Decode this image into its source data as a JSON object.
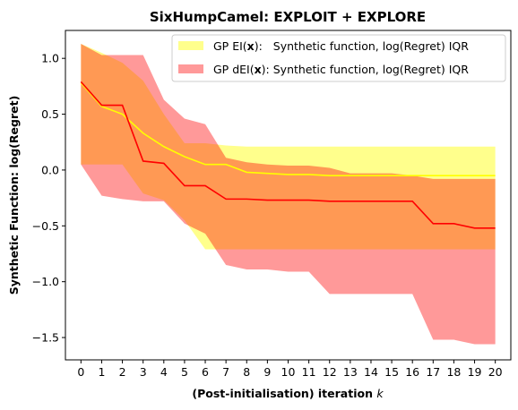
{
  "chart_data": {
    "type": "line",
    "title": "SixHumpCamel: EXPLOIT + EXPLORE",
    "xlabel_prefix": "(Post-initialisation) iteration ",
    "xlabel_var": "k",
    "ylabel": "Synthetic Function: log(Regret)",
    "xlim": [
      -0.75,
      20.75
    ],
    "ylim": [
      -1.7,
      1.25
    ],
    "x_ticks": [
      0,
      1,
      2,
      3,
      4,
      5,
      6,
      7,
      8,
      9,
      10,
      11,
      12,
      13,
      14,
      15,
      16,
      17,
      18,
      19,
      20
    ],
    "y_ticks": [
      1.0,
      0.5,
      0.0,
      -0.5,
      -1.0,
      -1.5
    ],
    "y_tick_labels": [
      "1.0",
      "0.5",
      "0.0",
      "−0.5",
      "−1.0",
      "−1.5"
    ],
    "x": [
      0,
      1,
      2,
      3,
      4,
      5,
      6,
      7,
      8,
      9,
      10,
      11,
      12,
      13,
      14,
      15,
      16,
      17,
      18,
      19,
      20
    ],
    "series": [
      {
        "name": "GP EI(x):   Synthetic function, log(Regret) IQR",
        "legend_parts": [
          "GP EI(",
          "x",
          "):   Synthetic function, log(Regret) IQR"
        ],
        "line_color": "#ffff00",
        "fill_color": "#ffff00",
        "fill_alpha": 0.45,
        "median": [
          0.78,
          0.57,
          0.5,
          0.33,
          0.21,
          0.12,
          0.05,
          0.05,
          -0.02,
          -0.03,
          -0.04,
          -0.04,
          -0.05,
          -0.05,
          -0.05,
          -0.05,
          -0.05,
          -0.05,
          -0.05,
          -0.05,
          -0.05
        ],
        "upper": [
          1.13,
          1.05,
          0.96,
          0.8,
          0.5,
          0.24,
          0.24,
          0.22,
          0.21,
          0.21,
          0.21,
          0.21,
          0.21,
          0.21,
          0.21,
          0.21,
          0.21,
          0.21,
          0.21,
          0.21,
          0.21
        ],
        "lower": [
          0.05,
          0.05,
          0.05,
          -0.21,
          -0.27,
          -0.45,
          -0.71,
          -0.71,
          -0.71,
          -0.71,
          -0.71,
          -0.71,
          -0.71,
          -0.71,
          -0.71,
          -0.71,
          -0.71,
          -0.71,
          -0.71,
          -0.71,
          -0.71
        ]
      },
      {
        "name": "GP dEI(x): Synthetic function, log(Regret) IQR",
        "legend_parts": [
          "GP dEI(",
          "x",
          "): Synthetic function, log(Regret) IQR"
        ],
        "line_color": "#ff0000",
        "fill_color": "#ff0000",
        "fill_alpha": 0.4,
        "median": [
          0.79,
          0.58,
          0.58,
          0.08,
          0.06,
          -0.14,
          -0.14,
          -0.26,
          -0.26,
          -0.27,
          -0.27,
          -0.27,
          -0.28,
          -0.28,
          -0.28,
          -0.28,
          -0.28,
          -0.48,
          -0.48,
          -0.52,
          -0.52
        ],
        "upper": [
          1.13,
          1.03,
          1.03,
          1.03,
          0.63,
          0.46,
          0.41,
          0.11,
          0.07,
          0.05,
          0.04,
          0.04,
          0.02,
          -0.03,
          -0.03,
          -0.03,
          -0.05,
          -0.08,
          -0.08,
          -0.08,
          -0.08
        ],
        "lower": [
          0.05,
          -0.23,
          -0.26,
          -0.28,
          -0.28,
          -0.48,
          -0.57,
          -0.85,
          -0.89,
          -0.89,
          -0.91,
          -0.91,
          -1.11,
          -1.11,
          -1.11,
          -1.11,
          -1.11,
          -1.52,
          -1.52,
          -1.56,
          -1.56
        ]
      }
    ],
    "legend_position": "top-right",
    "grid": false
  }
}
